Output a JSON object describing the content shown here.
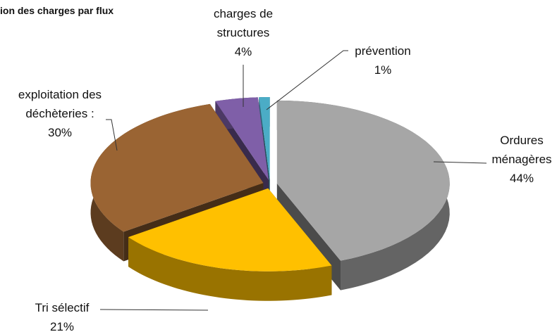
{
  "chart_data": {
    "type": "pie",
    "title": "ion des charges par flux",
    "categories": [
      "Ordures ménagères",
      "Tri sélectif",
      "exploitation des déchèteries :",
      "charges de structures",
      "prévention"
    ],
    "values": [
      44,
      21,
      30,
      4,
      1
    ],
    "value_labels": [
      "44%",
      "21%",
      "30%",
      "4%",
      "1%"
    ],
    "colors": [
      "#a6a6a6",
      "#ffc000",
      "#9a6433",
      "#7f5fa8",
      "#4bacc6"
    ]
  }
}
